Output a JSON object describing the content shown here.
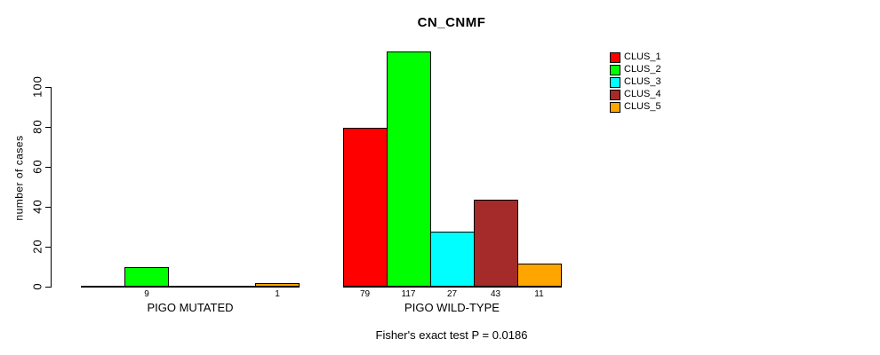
{
  "chart_data": {
    "type": "bar",
    "grouped": true,
    "title": "CN_CNMF",
    "xlabel": "",
    "ylabel": "number of cases",
    "yticks": [
      0,
      20,
      40,
      60,
      80,
      100
    ],
    "ylim": [
      0,
      120
    ],
    "grid": false,
    "categories": [
      "PIGO MUTATED",
      "PIGO WILD-TYPE"
    ],
    "series": [
      {
        "name": "CLUS_1",
        "color": "#FF0000",
        "values": [
          0,
          79
        ]
      },
      {
        "name": "CLUS_2",
        "color": "#00FF00",
        "values": [
          9,
          117
        ]
      },
      {
        "name": "CLUS_3",
        "color": "#00FFFF",
        "values": [
          0,
          27
        ]
      },
      {
        "name": "CLUS_4",
        "color": "#A52A2A",
        "values": [
          0,
          43
        ]
      },
      {
        "name": "CLUS_5",
        "color": "#FFA500",
        "values": [
          1,
          11
        ]
      }
    ],
    "bar_value_labels": [
      "9",
      "1",
      "79",
      "117",
      "27",
      "43",
      "11"
    ],
    "show_zero_value_labels": false,
    "legend": {
      "position": "top-right",
      "entries": [
        "CLUS_1",
        "CLUS_2",
        "CLUS_3",
        "CLUS_4",
        "CLUS_5"
      ]
    },
    "annotation": "Fisher's exact test P = 0.0186"
  }
}
